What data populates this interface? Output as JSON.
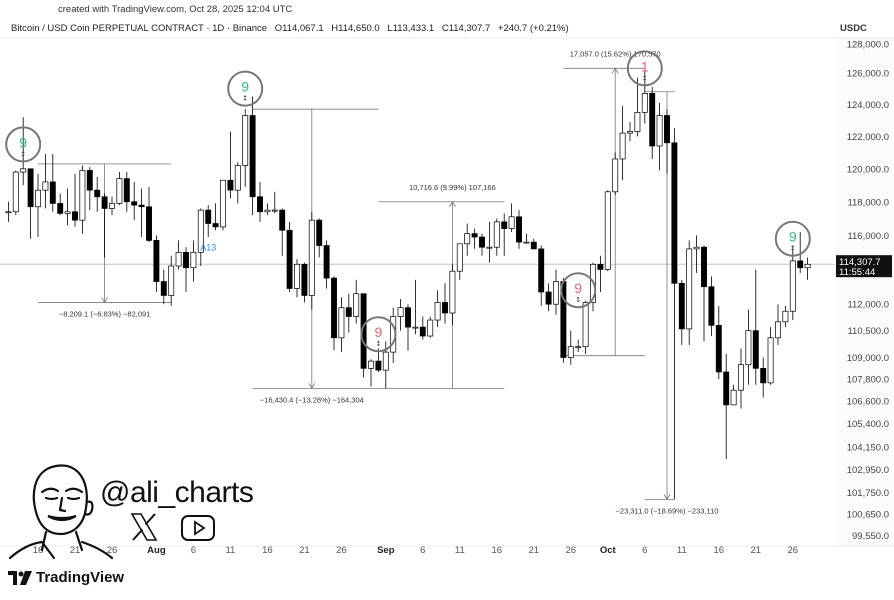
{
  "watermark": "created with TradingView.com, Oct 28, 2025 12:04 UTC",
  "legend": {
    "symbol": "Bitcoin / USD Coin PERPETUAL CONTRACT · 1D · Binance",
    "open": "O114,067.1",
    "high": "H114,650.0",
    "low": "L113,433.1",
    "close": "C114,307.7",
    "change": "+240.7 (+0.21%)"
  },
  "author": {
    "handle": "@ali_charts",
    "icons": [
      "x-logo-icon",
      "youtube-icon"
    ]
  },
  "brand": {
    "name": "TradingView"
  },
  "chart_data": {
    "type": "candlestick",
    "scale": "log",
    "currency": "USDC",
    "ylim": [
      99550,
      128000
    ],
    "current_price": {
      "value": "114,307.7",
      "countdown": "11:55:44",
      "price": 114307.7
    },
    "colors": {
      "up_fill": "#ffffff",
      "down_fill": "#000000",
      "outline": "#000000",
      "td_green": "#2ebd85",
      "td_red": "#f0616d",
      "a13_blue": "#2196f3"
    },
    "y_ticks": [
      "128,000.0",
      "126,000.0",
      "124,000.0",
      "122,000.0",
      "120,000.0",
      "118,000.0",
      "116,000.0",
      "112,000.0",
      "110,500.0",
      "109,000.0",
      "107,800.0",
      "106,600.0",
      "105,400.0",
      "104,150.0",
      "102,950.0",
      "101,750.0",
      "100,650.0",
      "99,550.0"
    ],
    "x_ticks": [
      {
        "label": "16",
        "date": "07-16"
      },
      {
        "label": "21",
        "date": "07-21"
      },
      {
        "label": "26",
        "date": "07-26"
      },
      {
        "label": "Aug",
        "date": "08-01",
        "bold": true
      },
      {
        "label": "6",
        "date": "08-06"
      },
      {
        "label": "11",
        "date": "08-11"
      },
      {
        "label": "16",
        "date": "08-16"
      },
      {
        "label": "21",
        "date": "08-21"
      },
      {
        "label": "26",
        "date": "08-26"
      },
      {
        "label": "Sep",
        "date": "09-01",
        "bold": true
      },
      {
        "label": "6",
        "date": "09-06"
      },
      {
        "label": "11",
        "date": "09-11"
      },
      {
        "label": "16",
        "date": "09-16"
      },
      {
        "label": "21",
        "date": "09-21"
      },
      {
        "label": "26",
        "date": "09-26"
      },
      {
        "label": "Oct",
        "date": "10-01",
        "bold": true
      },
      {
        "label": "6",
        "date": "10-06"
      },
      {
        "label": "11",
        "date": "10-11"
      },
      {
        "label": "16",
        "date": "10-16"
      },
      {
        "label": "21",
        "date": "10-21"
      },
      {
        "label": "26",
        "date": "10-26"
      }
    ],
    "candles": [
      [
        "07-12",
        117400,
        118000,
        116800,
        117400
      ],
      [
        "07-13",
        117400,
        119900,
        117200,
        119800
      ],
      [
        "07-14",
        119800,
        123200,
        119000,
        120000
      ],
      [
        "07-15",
        120000,
        120000,
        115800,
        117700
      ],
      [
        "07-16",
        117700,
        119700,
        115900,
        118700
      ],
      [
        "07-17",
        118700,
        120900,
        117600,
        119200
      ],
      [
        "07-18",
        119200,
        120900,
        117400,
        117900
      ],
      [
        "07-19",
        117900,
        118500,
        117200,
        117300
      ],
      [
        "07-20",
        117300,
        118800,
        116600,
        117400
      ],
      [
        "07-21",
        117400,
        119700,
        116500,
        116900
      ],
      [
        "07-22",
        116900,
        120200,
        116100,
        119900
      ],
      [
        "07-23",
        119900,
        120100,
        117500,
        118700
      ],
      [
        "07-24",
        118700,
        119500,
        117400,
        118300
      ],
      [
        "07-25",
        118300,
        118500,
        114700,
        117600
      ],
      [
        "07-26",
        117600,
        118300,
        117200,
        117900
      ],
      [
        "07-27",
        117900,
        119800,
        117800,
        119400
      ],
      [
        "07-28",
        119400,
        119800,
        117400,
        118000
      ],
      [
        "07-29",
        118000,
        119200,
        116900,
        117800
      ],
      [
        "07-30",
        117800,
        118800,
        115900,
        117700
      ],
      [
        "07-31",
        117700,
        118900,
        115600,
        115700
      ],
      [
        "08-01",
        115700,
        116000,
        112700,
        113300
      ],
      [
        "08-02",
        113300,
        114000,
        112000,
        112500
      ],
      [
        "08-03",
        112500,
        114800,
        111900,
        114200
      ],
      [
        "08-04",
        114200,
        115700,
        114000,
        115000
      ],
      [
        "08-05",
        115000,
        115300,
        112700,
        114100
      ],
      [
        "08-06",
        114100,
        115700,
        113300,
        115000
      ],
      [
        "08-07",
        115000,
        117600,
        114200,
        117500
      ],
      [
        "08-08",
        117500,
        117800,
        115900,
        116700
      ],
      [
        "08-09",
        116700,
        117900,
        116300,
        116500
      ],
      [
        "08-10",
        116500,
        119300,
        116300,
        119300
      ],
      [
        "08-11",
        119300,
        122300,
        118200,
        118700
      ],
      [
        "08-12",
        118700,
        120400,
        117900,
        120200
      ],
      [
        "08-13",
        120200,
        123700,
        118900,
        123300
      ],
      [
        "08-14",
        123300,
        124500,
        117200,
        118300
      ],
      [
        "08-15",
        118300,
        119200,
        116800,
        117400
      ],
      [
        "08-16",
        117400,
        117900,
        117200,
        117500
      ],
      [
        "08-17",
        117500,
        118600,
        117300,
        117500
      ],
      [
        "08-18",
        117500,
        117600,
        114800,
        116300
      ],
      [
        "08-19",
        116300,
        116800,
        112700,
        112900
      ],
      [
        "08-20",
        112900,
        114600,
        112400,
        114300
      ],
      [
        "08-21",
        114300,
        114400,
        112100,
        112500
      ],
      [
        "08-22",
        112500,
        117400,
        111700,
        116900
      ],
      [
        "08-23",
        116900,
        117000,
        114700,
        115400
      ],
      [
        "08-24",
        115400,
        115700,
        112900,
        113500
      ],
      [
        "08-25",
        113500,
        113600,
        109400,
        110100
      ],
      [
        "08-26",
        110100,
        112400,
        109300,
        111800
      ],
      [
        "08-27",
        111800,
        112600,
        110400,
        111300
      ],
      [
        "08-28",
        111300,
        113400,
        110900,
        112600
      ],
      [
        "08-29",
        112600,
        112600,
        107900,
        108400
      ],
      [
        "08-30",
        108400,
        108900,
        107400,
        108800
      ],
      [
        "08-31",
        108800,
        109500,
        108200,
        108300
      ],
      [
        "09-01",
        108300,
        109900,
        107300,
        109300
      ],
      [
        "09-02",
        109300,
        111800,
        108700,
        111300
      ],
      [
        "09-03",
        111300,
        112300,
        110500,
        111800
      ],
      [
        "09-04",
        111800,
        112000,
        109400,
        110700
      ],
      [
        "09-05",
        110700,
        113400,
        110300,
        110700
      ],
      [
        "09-06",
        110700,
        111300,
        110000,
        110200
      ],
      [
        "09-07",
        110200,
        111300,
        110100,
        111100
      ],
      [
        "09-08",
        111100,
        112800,
        110700,
        112100
      ],
      [
        "09-09",
        112100,
        113200,
        110900,
        111500
      ],
      [
        "09-10",
        111500,
        114300,
        110800,
        113900
      ],
      [
        "09-11",
        113900,
        115500,
        113400,
        115500
      ],
      [
        "09-12",
        115500,
        116700,
        114800,
        116100
      ],
      [
        "09-13",
        116100,
        116400,
        115200,
        115900
      ],
      [
        "09-14",
        115900,
        116100,
        114800,
        115300
      ],
      [
        "09-15",
        115300,
        116800,
        114400,
        115300
      ],
      [
        "09-16",
        115300,
        117000,
        114800,
        116800
      ],
      [
        "09-17",
        116800,
        117300,
        114800,
        116400
      ],
      [
        "09-18",
        116400,
        117900,
        116200,
        117100
      ],
      [
        "09-19",
        117100,
        117500,
        115200,
        115600
      ],
      [
        "09-20",
        115600,
        116100,
        115500,
        115600
      ],
      [
        "09-21",
        115600,
        115800,
        115200,
        115200
      ],
      [
        "09-22",
        115200,
        115400,
        111900,
        112700
      ],
      [
        "09-23",
        112700,
        113200,
        111600,
        112000
      ],
      [
        "09-24",
        112000,
        114000,
        111400,
        113300
      ],
      [
        "09-25",
        113300,
        113500,
        108700,
        109000
      ],
      [
        "09-26",
        109000,
        110500,
        108600,
        109600
      ],
      [
        "09-27",
        109600,
        110000,
        109300,
        109600
      ],
      [
        "09-28",
        109600,
        112200,
        109200,
        112100
      ],
      [
        "09-29",
        112100,
        114400,
        111600,
        114300
      ],
      [
        "09-30",
        114300,
        114800,
        112700,
        114000
      ],
      [
        "10-01",
        114000,
        118700,
        113900,
        118600
      ],
      [
        "10-02",
        118600,
        121000,
        118400,
        120600
      ],
      [
        "10-03",
        120600,
        123900,
        119300,
        122200
      ],
      [
        "10-04",
        122200,
        122900,
        121700,
        122300
      ],
      [
        "10-05",
        122300,
        125700,
        122000,
        123500
      ],
      [
        "10-06",
        123500,
        126200,
        122800,
        124700
      ],
      [
        "10-07",
        124700,
        125100,
        120600,
        121400
      ],
      [
        "10-08",
        121400,
        124100,
        119900,
        123300
      ],
      [
        "10-09",
        123300,
        123700,
        119700,
        121600
      ],
      [
        "10-10",
        121600,
        122500,
        101400,
        113200
      ],
      [
        "10-11",
        113200,
        113400,
        109700,
        110600
      ],
      [
        "10-12",
        110600,
        115700,
        109700,
        115200
      ],
      [
        "10-13",
        115200,
        116000,
        113800,
        115300
      ],
      [
        "10-14",
        115300,
        115400,
        109900,
        113000
      ],
      [
        "10-15",
        113000,
        113600,
        110200,
        110800
      ],
      [
        "10-16",
        110800,
        111900,
        107800,
        108200
      ],
      [
        "10-17",
        108200,
        109200,
        103500,
        106400
      ],
      [
        "10-18",
        106400,
        107500,
        106400,
        107200
      ],
      [
        "10-19",
        107200,
        109500,
        106200,
        108600
      ],
      [
        "10-20",
        108600,
        111700,
        107500,
        110500
      ],
      [
        "10-21",
        110500,
        114000,
        107500,
        108400
      ],
      [
        "10-22",
        108400,
        109000,
        106800,
        107600
      ],
      [
        "10-23",
        107600,
        110700,
        107500,
        110100
      ],
      [
        "10-24",
        110100,
        112000,
        109700,
        111000
      ],
      [
        "10-25",
        111000,
        111900,
        110700,
        111600
      ],
      [
        "10-26",
        111600,
        115400,
        111100,
        114500
      ],
      [
        "10-27",
        114500,
        116200,
        113800,
        114100
      ],
      [
        "10-28",
        114100,
        114700,
        113400,
        114300
      ]
    ],
    "measurements": [
      {
        "from": "07-16",
        "to": "08-03",
        "arrow": "07-25",
        "start": 120300,
        "end": 112100,
        "label": "−8,209.1 (−6.83%) −82,091"
      },
      {
        "from": "08-14",
        "to": "08-31",
        "arrow": "08-22",
        "start": 123700,
        "end": 107300,
        "label": "−16,430.4 (−13.28%) −164,304"
      },
      {
        "from": "08-31",
        "to": "09-17",
        "arrow": "09-10",
        "start": 107300,
        "end": 118000,
        "label": "10,716.6 (9.99%) 107,166"
      },
      {
        "from": "09-25",
        "to": "10-06",
        "arrow": "10-02",
        "start": 109100,
        "end": 126300,
        "label": "17,057.0 (15.62%) 170,570"
      },
      {
        "from": "10-06",
        "to": "10-10",
        "arrow": "10-09",
        "start": 124800,
        "end": 101400,
        "label": "−23,311.0 (−18.69%) −233,110"
      }
    ],
    "td_markers": [
      {
        "date": "07-14",
        "price": 121500,
        "label": "9",
        "color": "green"
      },
      {
        "date": "08-13",
        "price": 125000,
        "label": "9",
        "color": "green"
      },
      {
        "date": "08-31",
        "price": 110300,
        "label": "9",
        "color": "red"
      },
      {
        "date": "09-27",
        "price": 112800,
        "label": "9",
        "color": "red"
      },
      {
        "date": "10-06",
        "price": 126300,
        "label": "1",
        "color": "red"
      },
      {
        "date": "10-26",
        "price": 115800,
        "label": "9",
        "color": "green"
      }
    ],
    "a13": {
      "date": "08-08",
      "price": 115100,
      "label": "A13"
    }
  }
}
